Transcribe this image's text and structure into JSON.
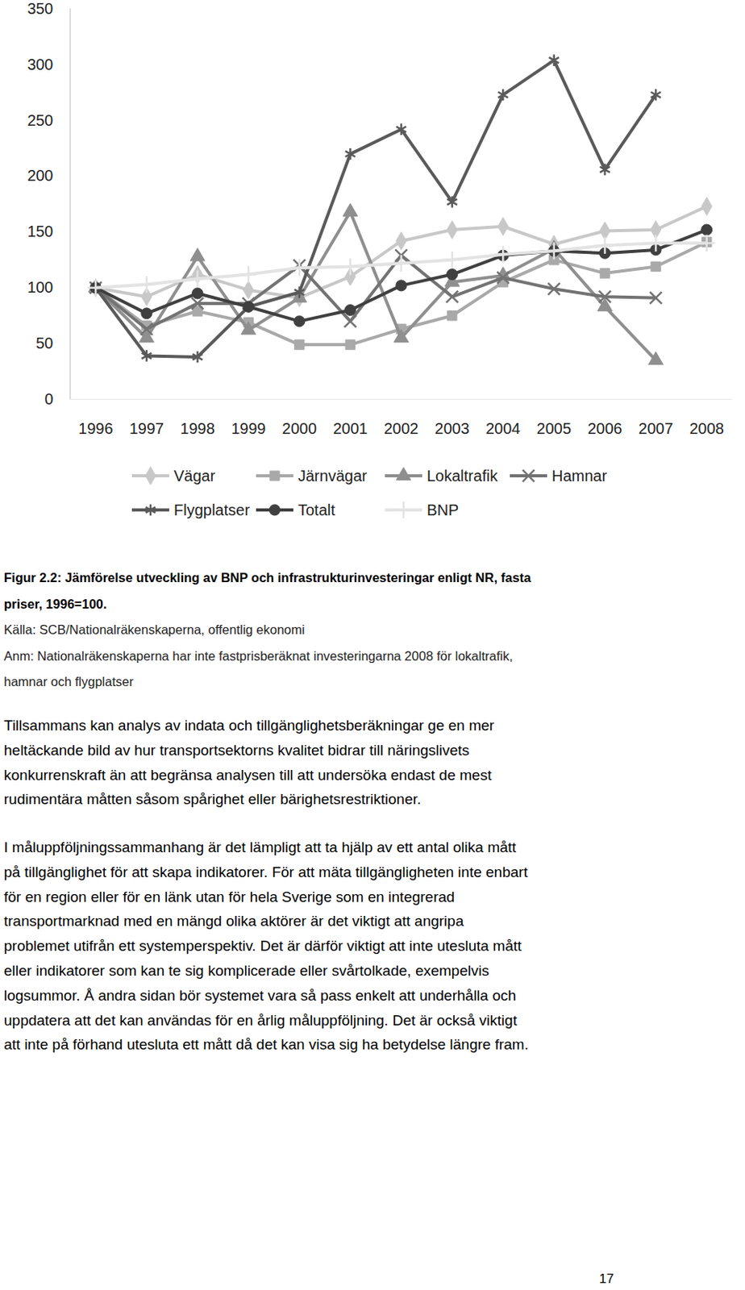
{
  "chart_data": {
    "type": "line",
    "categories": [
      "1996",
      "1997",
      "1998",
      "1999",
      "2000",
      "2001",
      "2002",
      "2003",
      "2004",
      "2005",
      "2006",
      "2007",
      "2008"
    ],
    "ylim": [
      0,
      350
    ],
    "yticks": [
      0,
      50,
      100,
      150,
      200,
      250,
      300,
      350
    ],
    "grid": false,
    "legend": "bottom",
    "series": [
      {
        "name": "Vägar",
        "color": "#c8c8c8",
        "marker": "diamond",
        "values": [
          100,
          92,
          112,
          98,
          91,
          110,
          142,
          152,
          155,
          139,
          151,
          152,
          173
        ]
      },
      {
        "name": "Järnvägar",
        "color": "#a9a9a9",
        "marker": "square",
        "values": [
          100,
          66,
          79,
          69,
          49,
          49,
          63,
          75,
          105,
          125,
          113,
          119,
          141
        ]
      },
      {
        "name": "Lokaltrafik",
        "color": "#8f8f8f",
        "marker": "triangle",
        "values": [
          100,
          55,
          128,
          62,
          91,
          168,
          55,
          105,
          111,
          135,
          83,
          35,
          null
        ]
      },
      {
        "name": "Hamnar",
        "color": "#737373",
        "marker": "times",
        "values": [
          100,
          63,
          86,
          86,
          120,
          70,
          129,
          92,
          109,
          99,
          92,
          91,
          null
        ]
      },
      {
        "name": "Flygplatser",
        "color": "#5a5a5a",
        "marker": "asterisk",
        "values": [
          100,
          39,
          38,
          83,
          96,
          220,
          242,
          177,
          273,
          304,
          206,
          273,
          null
        ]
      },
      {
        "name": "Totalt",
        "color": "#404040",
        "marker": "circle",
        "values": [
          100,
          77,
          95,
          83,
          70,
          80,
          102,
          112,
          129,
          133,
          131,
          134,
          152
        ]
      },
      {
        "name": "BNP",
        "color": "#e3e3e3",
        "marker": "plus",
        "values": [
          100,
          103,
          108,
          112,
          118,
          119,
          122,
          125,
          130,
          133,
          138,
          140,
          140
        ]
      }
    ]
  },
  "caption": [
    "Figur 2.2: Jämförelse utveckling av BNP och infrastrukturinvesteringar enligt NR, fasta",
    "priser, 1996=100."
  ],
  "source": "Källa: SCB/Nationalräkenskaperna, offentlig ekonomi",
  "note": [
    "Anm: Nationalräkenskaperna har inte fastprisberäknat investeringarna 2008 för lokaltrafik,",
    "hamnar och flygplatser"
  ],
  "paragraphs": [
    [
      "Tillsammans kan analys av indata och tillgänglighetsberäkningar ge en mer",
      "heltäckande bild av hur transportsektorns kvalitet bidrar till näringslivets",
      "konkurrenskraft än att begränsa analysen till att undersöka endast de mest",
      "rudimentära måtten såsom spårighet eller bärighetsrestriktioner."
    ],
    [
      "I måluppföljningssammanhang är det lämpligt att ta hjälp av ett antal olika mått",
      "på tillgänglighet för att skapa indikatorer. För att mäta tillgängligheten inte enbart",
      "för en region eller för en länk utan för hela Sverige som en integrerad",
      "transportmarknad med en mängd olika aktörer är det viktigt att angripa",
      "problemet utifrån ett systemperspektiv. Det är därför viktigt att inte utesluta mått",
      "eller indikatorer som kan te sig komplicerade eller svårtolkade, exempelvis",
      "logsummor. Å andra sidan bör systemet vara så pass enkelt att underhålla och",
      "uppdatera att det kan användas för en årlig måluppföljning. Det är också viktigt",
      "att inte på förhand utesluta ett mått då det kan visa sig ha betydelse längre fram."
    ]
  ],
  "page_number": "17"
}
